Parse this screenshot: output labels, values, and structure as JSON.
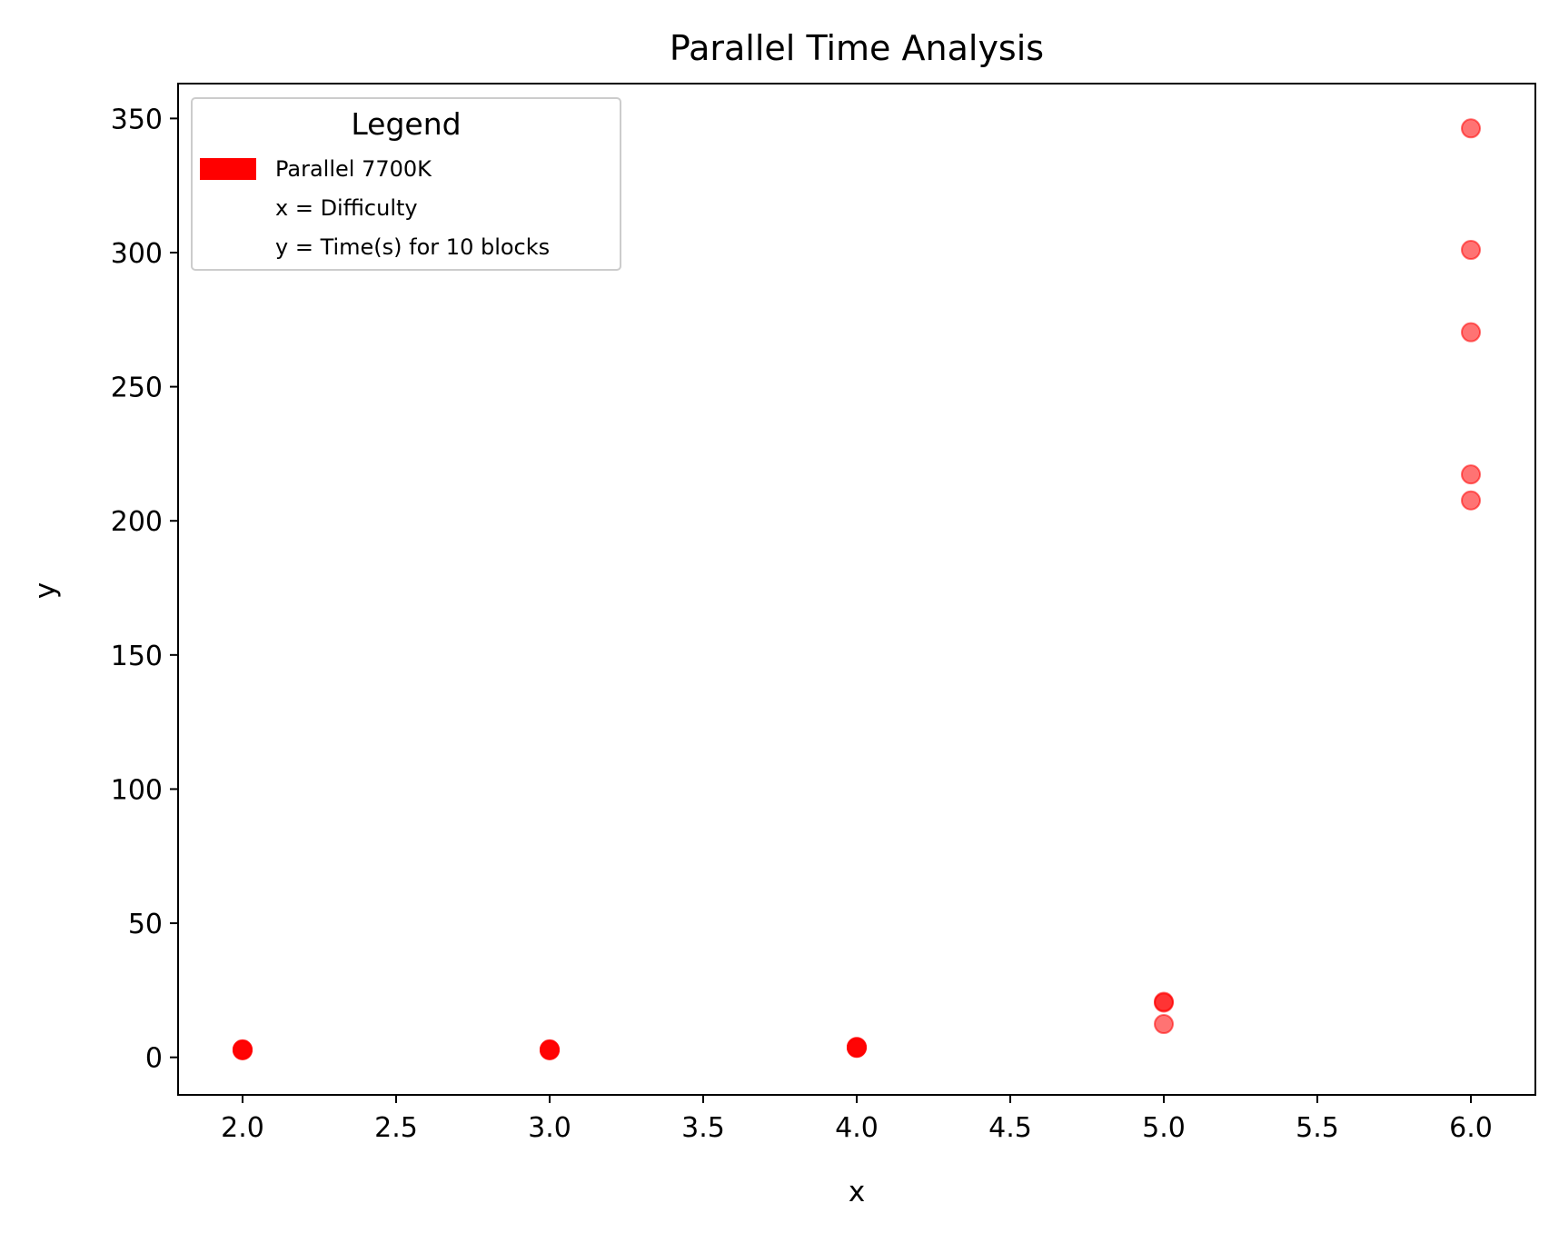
{
  "chart_data": {
    "type": "scatter",
    "title": "Parallel Time Analysis",
    "xlabel": "x",
    "ylabel": "y",
    "xlim": [
      1.79,
      6.21
    ],
    "ylim": [
      -14,
      363
    ],
    "xticks": [
      2.0,
      2.5,
      3.0,
      3.5,
      4.0,
      4.5,
      5.0,
      5.5,
      6.0
    ],
    "xtick_labels": [
      "2.0",
      "2.5",
      "3.0",
      "3.5",
      "4.0",
      "4.5",
      "5.0",
      "5.5",
      "6.0"
    ],
    "yticks": [
      0,
      50,
      100,
      150,
      200,
      250,
      300,
      350
    ],
    "ytick_labels": [
      "0",
      "50",
      "100",
      "150",
      "200",
      "250",
      "300",
      "350"
    ],
    "grid": false,
    "legend": {
      "title": "Legend",
      "placement": "upper-left",
      "entries": [
        "Parallel 7700K",
        "x = Difficulty",
        "y = Time(s) for 10 blocks"
      ]
    },
    "series": [
      {
        "name": "Parallel 7700K",
        "color": "#ff0000",
        "points": [
          {
            "x": 2,
            "y": 2.7
          },
          {
            "x": 2,
            "y": 2.9
          },
          {
            "x": 2,
            "y": 3.0
          },
          {
            "x": 2,
            "y": 2.8
          },
          {
            "x": 2,
            "y": 2.6
          },
          {
            "x": 3,
            "y": 2.7
          },
          {
            "x": 3,
            "y": 2.9
          },
          {
            "x": 3,
            "y": 3.0
          },
          {
            "x": 3,
            "y": 2.8
          },
          {
            "x": 3,
            "y": 2.6
          },
          {
            "x": 4,
            "y": 3.6
          },
          {
            "x": 4,
            "y": 3.8
          },
          {
            "x": 4,
            "y": 3.9
          },
          {
            "x": 4,
            "y": 3.7
          },
          {
            "x": 4,
            "y": 3.5
          },
          {
            "x": 5,
            "y": 20.7
          },
          {
            "x": 5,
            "y": 20.4
          },
          {
            "x": 5,
            "y": 12.4
          },
          {
            "x": 6,
            "y": 346.3
          },
          {
            "x": 6,
            "y": 301.0
          },
          {
            "x": 6,
            "y": 270.3
          },
          {
            "x": 6,
            "y": 217.3
          },
          {
            "x": 6,
            "y": 207.6
          }
        ]
      }
    ]
  }
}
